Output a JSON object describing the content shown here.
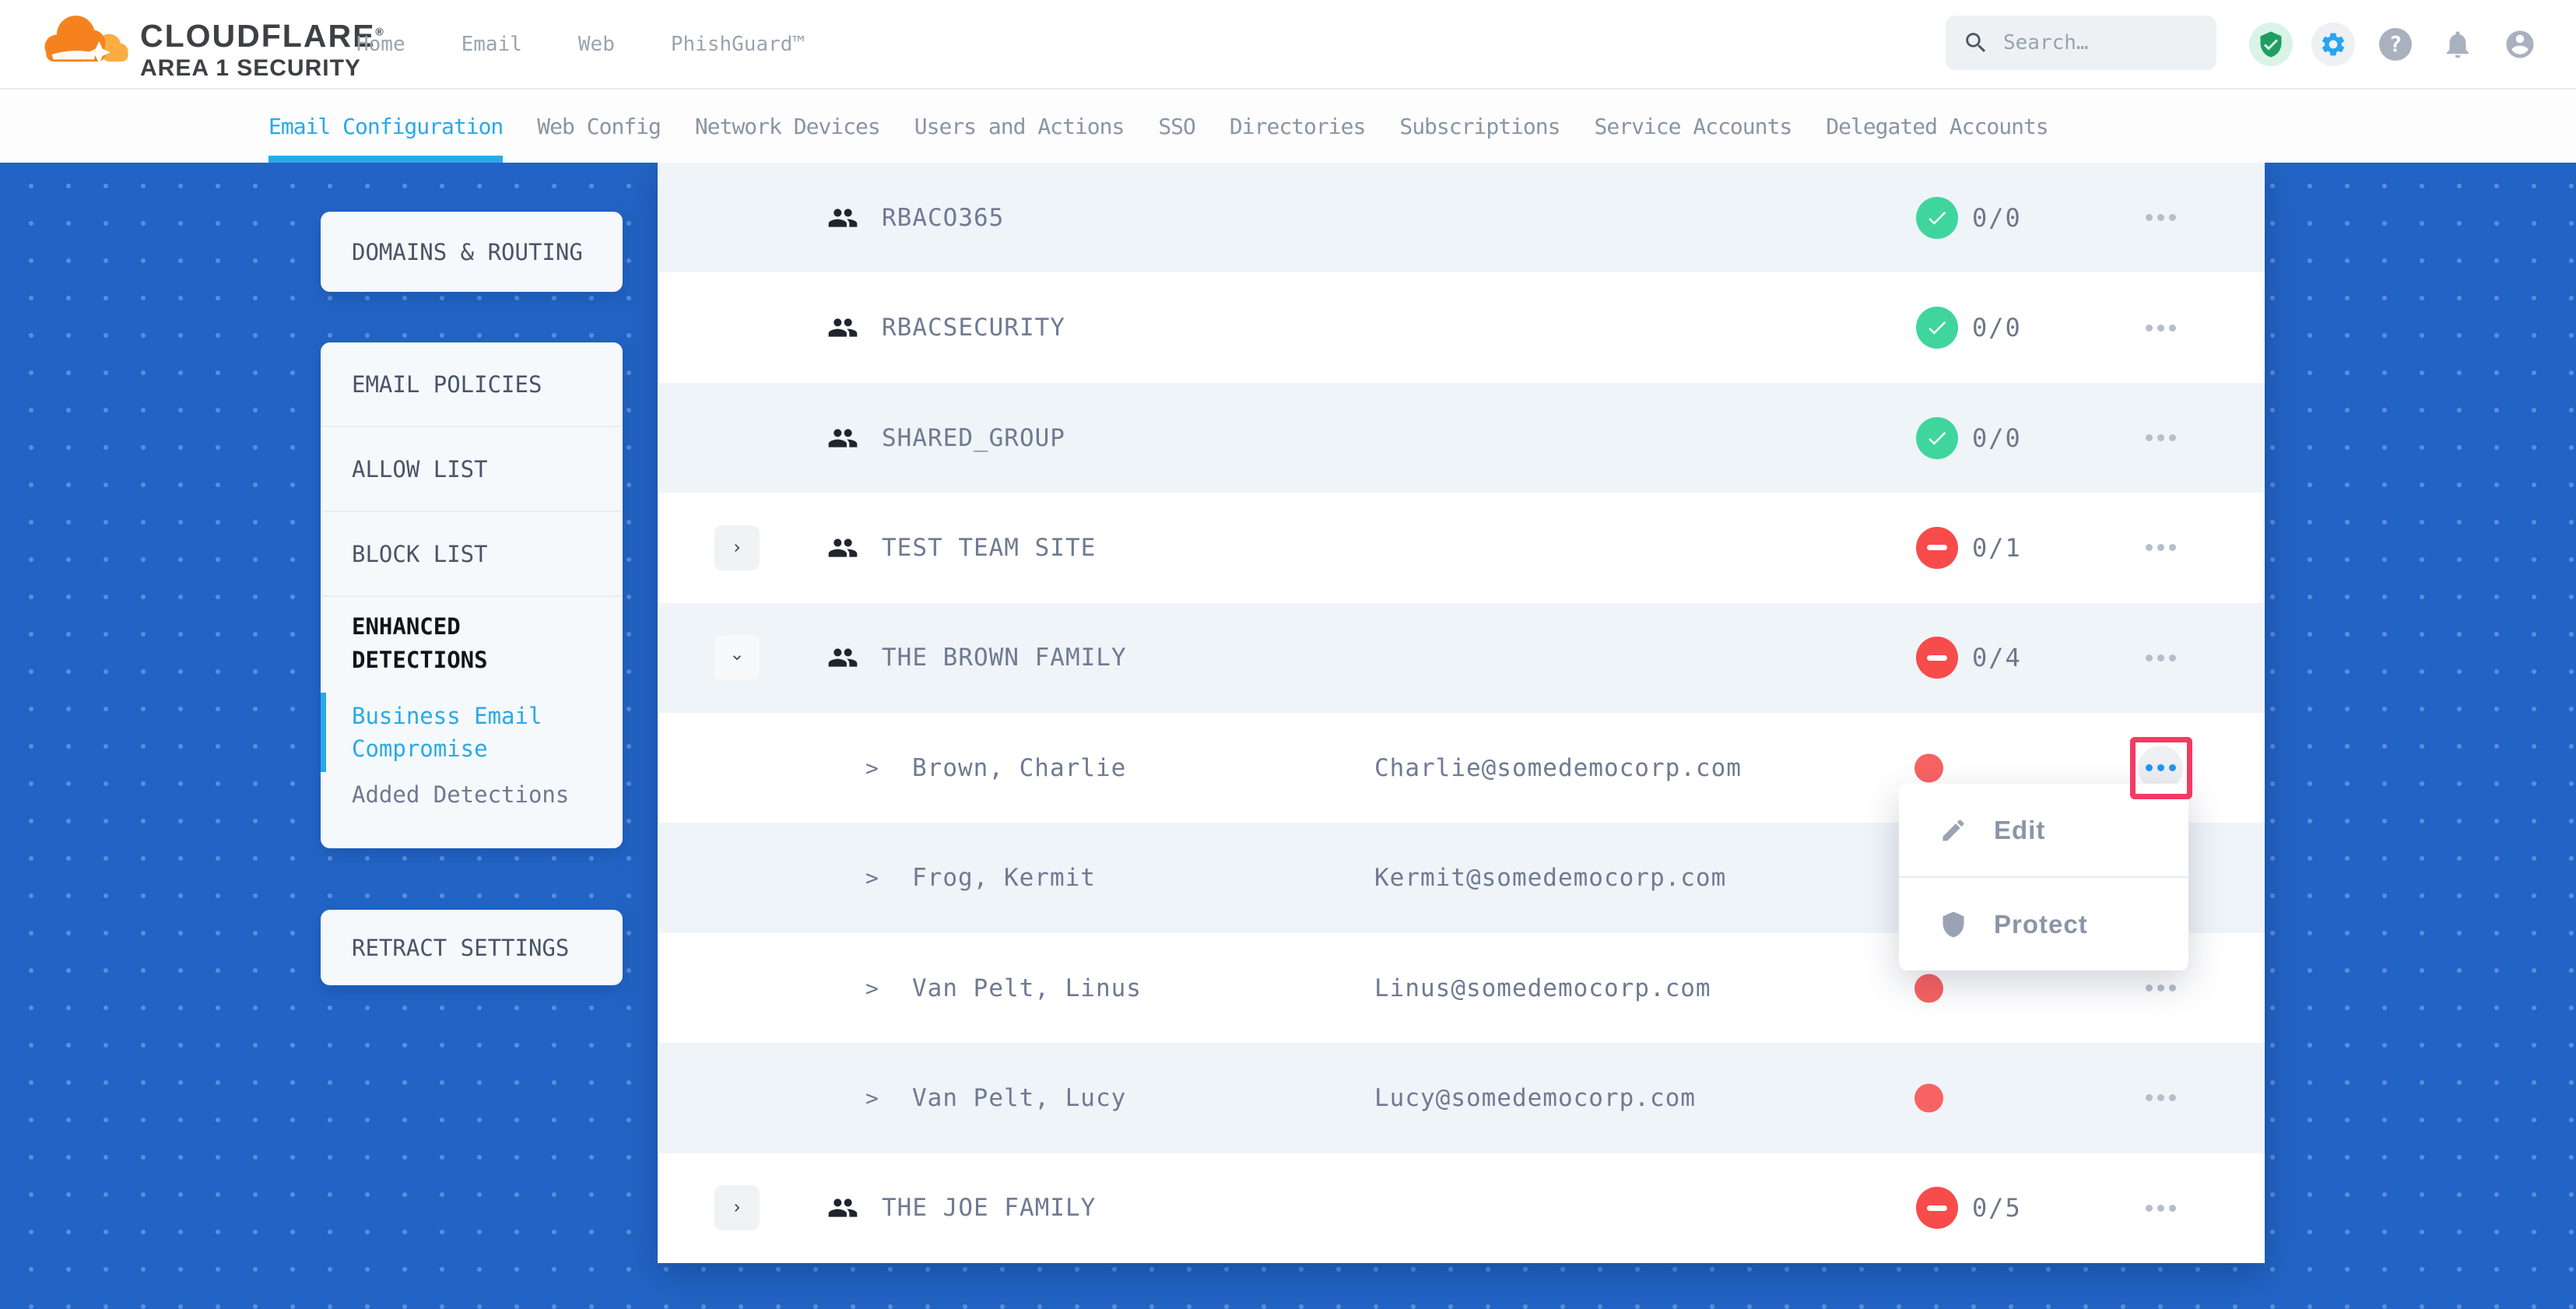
{
  "header": {
    "brand": {
      "name": "CLOUDFLARE",
      "registered": "®",
      "subtitle": "AREA 1 SECURITY"
    },
    "nav": [
      {
        "label": "Home"
      },
      {
        "label": "Email"
      },
      {
        "label": "Web"
      },
      {
        "label": "PhishGuard™"
      }
    ],
    "search": {
      "placeholder": "Search…"
    },
    "icons": [
      "shield-check",
      "settings-gear",
      "help",
      "notifications-bell",
      "account"
    ]
  },
  "subnav": {
    "items": [
      {
        "label": "Email Configuration",
        "active": true
      },
      {
        "label": "Web Config",
        "active": false
      },
      {
        "label": "Network Devices",
        "active": false
      },
      {
        "label": "Users and Actions",
        "active": false
      },
      {
        "label": "SSO",
        "active": false
      },
      {
        "label": "Directories",
        "active": false
      },
      {
        "label": "Subscriptions",
        "active": false
      },
      {
        "label": "Service Accounts",
        "active": false
      },
      {
        "label": "Delegated Accounts",
        "active": false
      }
    ]
  },
  "sidebar": {
    "domains_routing": "DOMAINS & ROUTING",
    "email_policies": "EMAIL POLICIES",
    "allow_list": "ALLOW LIST",
    "block_list": "BLOCK LIST",
    "enhanced_detections": "ENHANCED DETECTIONS",
    "business_email_compromise": "Business Email Compromise",
    "added_detections": "Added Detections",
    "retract_settings": "RETRACT SETTINGS"
  },
  "table": {
    "rows": [
      {
        "type": "group",
        "name": "RBACO365",
        "expander": null,
        "status": "ok",
        "count": "0/0"
      },
      {
        "type": "group",
        "name": "RBACSECURITY",
        "expander": null,
        "status": "ok",
        "count": "0/0"
      },
      {
        "type": "group",
        "name": "SHARED_GROUP",
        "expander": null,
        "status": "ok",
        "count": "0/0"
      },
      {
        "type": "group",
        "name": "TEST TEAM SITE",
        "expander": "collapsed",
        "status": "blocked",
        "count": "0/1"
      },
      {
        "type": "group",
        "name": "THE BROWN FAMILY",
        "expander": "expanded",
        "status": "blocked",
        "count": "0/4"
      },
      {
        "type": "member",
        "name": "Brown, Charlie",
        "email": "Charlie@somedemocorp.com",
        "status": "alert-dot",
        "menu_open": true
      },
      {
        "type": "member",
        "name": "Frog, Kermit",
        "email": "Kermit@somedemocorp.com",
        "status": "alert-dot"
      },
      {
        "type": "member",
        "name": "Van Pelt, Linus",
        "email": "Linus@somedemocorp.com",
        "status": "alert-dot"
      },
      {
        "type": "member",
        "name": "Van Pelt, Lucy",
        "email": "Lucy@somedemocorp.com",
        "status": "alert-dot"
      },
      {
        "type": "group",
        "name": "THE JOE FAMILY",
        "expander": "collapsed",
        "status": "blocked",
        "count": "0/5"
      }
    ]
  },
  "menu": {
    "items": [
      {
        "icon": "pencil-icon",
        "label": "Edit"
      },
      {
        "icon": "shield-icon",
        "label": "Protect"
      }
    ]
  },
  "colors": {
    "brand_orange": "#f6821f",
    "brand_orange_light": "#fbad41",
    "page_blue": "#2264c5",
    "active_blue": "#29a9e9",
    "status_green": "#3fd69e",
    "status_red": "#f84b4b",
    "alert_dot_red": "#f96262",
    "highlight_pink": "#f23b63",
    "menu_dots_blue": "#2196f3"
  }
}
